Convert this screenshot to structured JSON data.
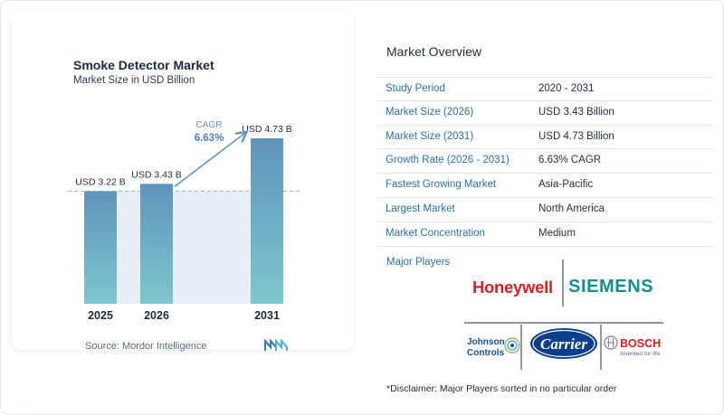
{
  "chart_data": {
    "type": "bar",
    "title": "Smoke Detector Market",
    "subtitle": "Market Size in USD Billion",
    "categories": [
      "2025",
      "2026",
      "2031"
    ],
    "values": [
      3.22,
      3.43,
      4.73
    ],
    "value_labels": [
      "USD 3.22 B",
      "USD 3.43 B",
      "USD 4.73 B"
    ],
    "cagr_label": "CAGR",
    "cagr_value": "6.63%",
    "ylim": [
      0,
      4.73
    ],
    "bar_color": "#5f94bd",
    "bar_color_bottom": "#7fc6cc"
  },
  "source": "Source:  Mordor Intelligence",
  "overview": {
    "title": "Market Overview",
    "rows": [
      {
        "label": "Study Period",
        "value": "2020 - 2031"
      },
      {
        "label": "Market Size (2026)",
        "value": "USD 3.43 Billion"
      },
      {
        "label": "Market Size (2031)",
        "value": "USD 4.73 Billion"
      },
      {
        "label": "Growth Rate (2026 - 2031)",
        "value": "6.63% CAGR"
      },
      {
        "label": "Fastest Growing Market",
        "value": "Asia-Pacific"
      },
      {
        "label": "Largest Market",
        "value": "North America"
      },
      {
        "label": "Market Concentration",
        "value": "Medium"
      }
    ],
    "players_title": "Major Players",
    "players": {
      "honeywell": "Honeywell",
      "siemens": "SIEMENS",
      "johnson_line1": "Johnson",
      "johnson_line2": "Controls",
      "carrier": "Carrier",
      "bosch": "BOSCH",
      "bosch_tagline": "Invented for life"
    }
  },
  "disclaimer": "*Disclaimer: Major Players sorted in no particular order"
}
